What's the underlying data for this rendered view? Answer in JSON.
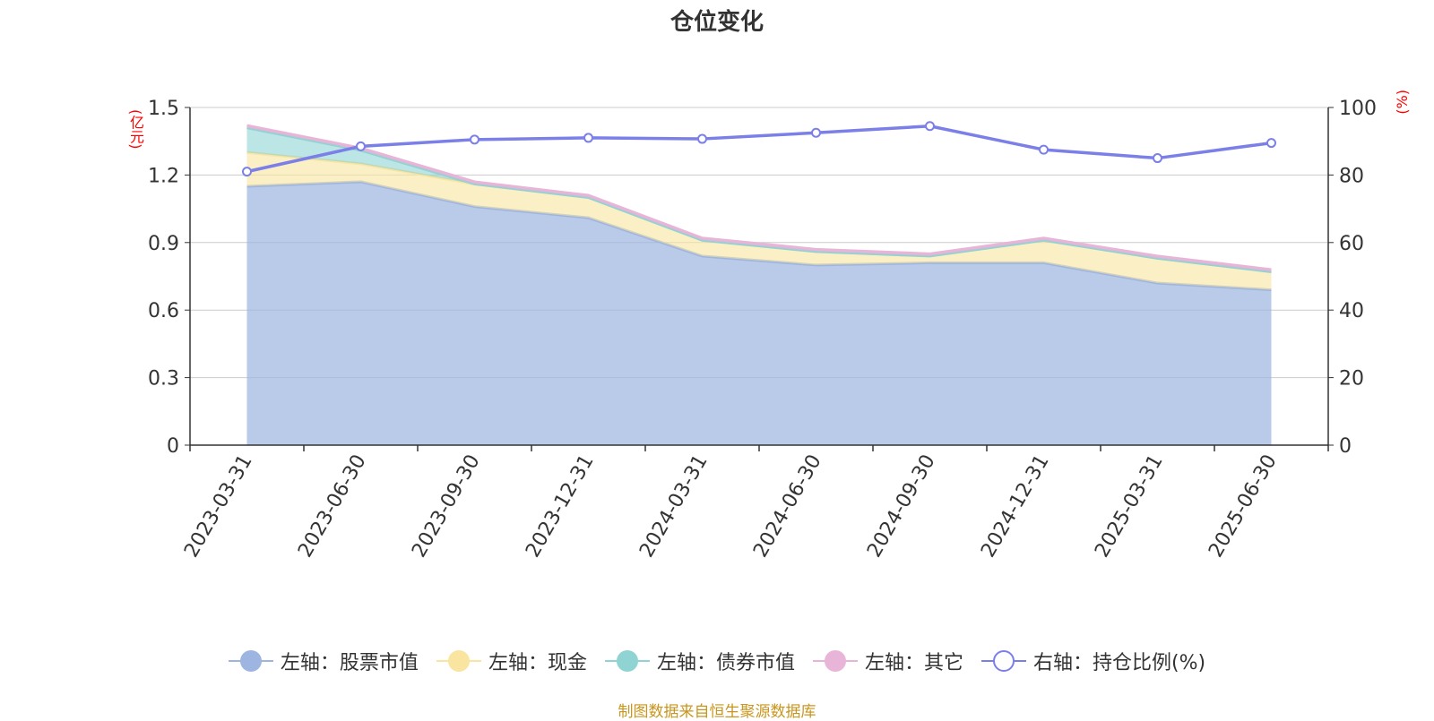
{
  "chart_data": {
    "type": "area",
    "title": "仓位变化",
    "left_axis_unit": "(亿元)",
    "right_axis_unit": "(%)",
    "categories": [
      "2023-03-31",
      "2023-06-30",
      "2023-09-30",
      "2023-12-31",
      "2024-03-31",
      "2024-06-30",
      "2024-09-30",
      "2024-12-31",
      "2025-03-31",
      "2025-06-30"
    ],
    "left_ticks": [
      "0",
      "0.3",
      "0.6",
      "0.9",
      "1.2",
      "1.5"
    ],
    "right_ticks": [
      "0",
      "20",
      "40",
      "60",
      "80",
      "100"
    ],
    "ylim_left": [
      0,
      1.5
    ],
    "ylim_right": [
      0,
      100
    ],
    "grid": true,
    "legend_position": "bottom",
    "stacked": true,
    "series": [
      {
        "name": "左轴：股票市值",
        "axis": "left",
        "color": "#9db5e0",
        "values": [
          1.15,
          1.17,
          1.06,
          1.01,
          0.84,
          0.8,
          0.81,
          0.81,
          0.72,
          0.69
        ]
      },
      {
        "name": "左轴：现金",
        "axis": "left",
        "color": "#f9e4a0",
        "values": [
          0.15,
          0.08,
          0.1,
          0.09,
          0.07,
          0.06,
          0.03,
          0.1,
          0.11,
          0.08
        ]
      },
      {
        "name": "左轴：债券市值",
        "axis": "left",
        "color": "#8fd3d3",
        "values": [
          0.11,
          0.06,
          0,
          0,
          0,
          0,
          0,
          0,
          0,
          0
        ]
      },
      {
        "name": "左轴：其它",
        "axis": "left",
        "color": "#e8b4d8",
        "values": [
          0.01,
          0.01,
          0.01,
          0.01,
          0.01,
          0.01,
          0.01,
          0.01,
          0.01,
          0.01
        ]
      },
      {
        "name": "右轴：持仓比例(%)",
        "axis": "right",
        "color": "#7b7fe8",
        "values": [
          81,
          88.5,
          90.5,
          91,
          90.7,
          92.5,
          94.5,
          87.5,
          85,
          89.5
        ]
      }
    ],
    "source_note": "制图数据来自恒生聚源数据库"
  }
}
